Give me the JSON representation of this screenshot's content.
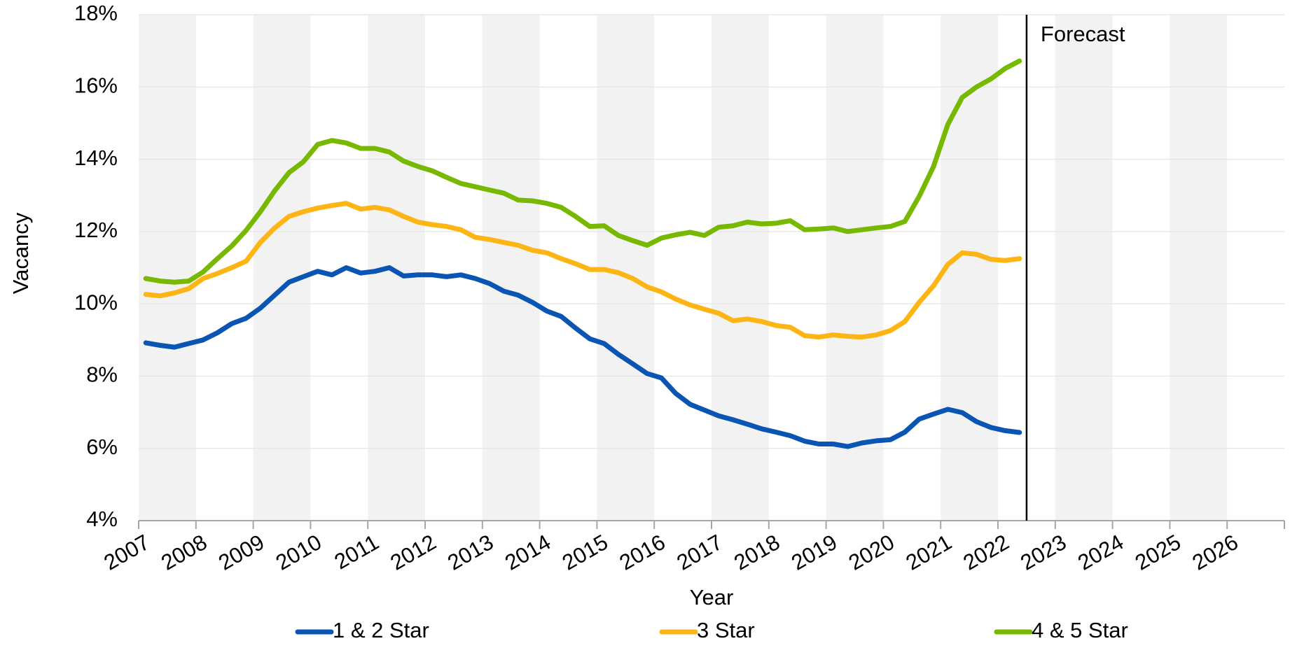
{
  "chart_data": {
    "type": "line",
    "y_label": "Vacancy",
    "x_label": "Year",
    "xlim": [
      2007,
      2027
    ],
    "xticks": [
      2007,
      2008,
      2009,
      2010,
      2011,
      2012,
      2013,
      2014,
      2015,
      2016,
      2017,
      2018,
      2019,
      2020,
      2021,
      2022,
      2023,
      2024,
      2025,
      2026
    ],
    "ylim": [
      4,
      18
    ],
    "yticks": [
      {
        "value": 4,
        "label": "4%"
      },
      {
        "value": 6,
        "label": "6%"
      },
      {
        "value": 8,
        "label": "8%"
      },
      {
        "value": 10,
        "label": "10%"
      },
      {
        "value": 12,
        "label": "12%"
      },
      {
        "value": 14,
        "label": "14%"
      },
      {
        "value": 16,
        "label": "16%"
      },
      {
        "value": 18,
        "label": "18%"
      }
    ],
    "grid": true,
    "legend": "bottom",
    "annotations": [
      {
        "text": "Forecast",
        "x": 2022.5
      }
    ],
    "x": [
      2007.125,
      2007.375,
      2007.625,
      2007.875,
      2008.125,
      2008.375,
      2008.625,
      2008.875,
      2009.125,
      2009.375,
      2009.625,
      2009.875,
      2010.125,
      2010.375,
      2010.625,
      2010.875,
      2011.125,
      2011.375,
      2011.625,
      2011.875,
      2012.125,
      2012.375,
      2012.625,
      2012.875,
      2013.125,
      2013.375,
      2013.625,
      2013.875,
      2014.125,
      2014.375,
      2014.625,
      2014.875,
      2015.125,
      2015.375,
      2015.625,
      2015.875,
      2016.125,
      2016.375,
      2016.625,
      2016.875,
      2017.125,
      2017.375,
      2017.625,
      2017.875,
      2018.125,
      2018.375,
      2018.625,
      2018.875,
      2019.125,
      2019.375,
      2019.625,
      2019.875,
      2020.125,
      2020.375,
      2020.625,
      2020.875,
      2021.125,
      2021.375,
      2021.625,
      2021.875,
      2022.125,
      2022.375
    ],
    "series": [
      {
        "name": "1 & 2 Star",
        "color": "#0a55b4",
        "values": [
          8.92,
          8.85,
          8.8,
          8.9,
          9.0,
          9.2,
          9.45,
          9.6,
          9.88,
          10.24,
          10.6,
          10.75,
          10.9,
          10.8,
          11.0,
          10.85,
          10.9,
          11.0,
          10.77,
          10.8,
          10.8,
          10.75,
          10.8,
          10.7,
          10.56,
          10.35,
          10.24,
          10.04,
          9.8,
          9.65,
          9.33,
          9.03,
          8.9,
          8.6,
          8.34,
          8.07,
          7.95,
          7.52,
          7.22,
          7.06,
          6.9,
          6.79,
          6.67,
          6.54,
          6.45,
          6.35,
          6.2,
          6.12,
          6.12,
          6.05,
          6.15,
          6.21,
          6.24,
          6.45,
          6.81,
          6.95,
          7.08,
          6.99,
          6.74,
          6.58,
          6.49,
          6.44
        ]
      },
      {
        "name": "3 Star",
        "color": "#fdb515",
        "values": [
          10.26,
          10.22,
          10.3,
          10.42,
          10.7,
          10.84,
          11.0,
          11.18,
          11.7,
          12.1,
          12.42,
          12.55,
          12.65,
          12.72,
          12.78,
          12.62,
          12.67,
          12.6,
          12.42,
          12.26,
          12.19,
          12.14,
          12.05,
          11.84,
          11.78,
          11.7,
          11.62,
          11.48,
          11.41,
          11.25,
          11.11,
          10.95,
          10.95,
          10.86,
          10.7,
          10.47,
          10.33,
          10.13,
          9.97,
          9.85,
          9.74,
          9.53,
          9.58,
          9.51,
          9.4,
          9.35,
          9.12,
          9.08,
          9.14,
          9.1,
          9.08,
          9.14,
          9.26,
          9.51,
          10.04,
          10.5,
          11.09,
          11.41,
          11.37,
          11.23,
          11.2,
          11.25
        ]
      },
      {
        "name": "4 & 5 Star",
        "color": "#76b900",
        "values": [
          10.7,
          10.63,
          10.6,
          10.63,
          10.88,
          11.25,
          11.6,
          12.03,
          12.55,
          13.13,
          13.63,
          13.93,
          14.41,
          14.52,
          14.45,
          14.3,
          14.3,
          14.2,
          13.95,
          13.8,
          13.68,
          13.5,
          13.33,
          13.24,
          13.15,
          13.06,
          12.87,
          12.85,
          12.78,
          12.67,
          12.42,
          12.14,
          12.16,
          11.89,
          11.75,
          11.62,
          11.82,
          11.91,
          11.98,
          11.89,
          12.12,
          12.16,
          12.26,
          12.21,
          12.23,
          12.3,
          12.05,
          12.07,
          12.1,
          12.0,
          12.05,
          12.1,
          12.14,
          12.28,
          12.97,
          13.8,
          14.96,
          15.71,
          16.0,
          16.22,
          16.51,
          16.72
        ]
      }
    ]
  }
}
